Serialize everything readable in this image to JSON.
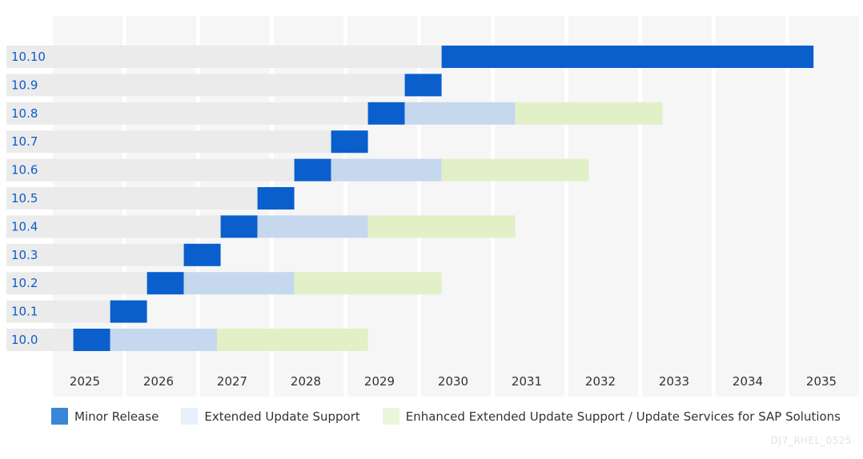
{
  "chart_data": {
    "type": "bar",
    "subtype": "gantt-timeline",
    "title": "",
    "xlabel": "",
    "ylabel": "",
    "x_ticks": [
      "2025",
      "2026",
      "2027",
      "2028",
      "2029",
      "2030",
      "2031",
      "2032",
      "2033",
      "2034",
      "2035"
    ],
    "xlim": [
      2025,
      2036
    ],
    "grid": true,
    "legend_position": "bottom-left",
    "categories": [
      "10.10",
      "10.9",
      "10.8",
      "10.7",
      "10.6",
      "10.5",
      "10.4",
      "10.3",
      "10.2",
      "10.1",
      "10.0"
    ],
    "series": [
      {
        "name": "Minor Release",
        "color": "#0a5fcc",
        "legend_color": "#3a86d8",
        "ranges": [
          [
            2030.3,
            2035.35
          ],
          [
            2029.8,
            2030.3
          ],
          [
            2029.3,
            2029.8
          ],
          [
            2028.8,
            2029.3
          ],
          [
            2028.3,
            2028.8
          ],
          [
            2027.8,
            2028.3
          ],
          [
            2027.3,
            2027.8
          ],
          [
            2026.8,
            2027.3
          ],
          [
            2026.3,
            2026.8
          ],
          [
            2025.8,
            2026.3
          ],
          [
            2025.3,
            2025.8
          ]
        ]
      },
      {
        "name": "Extended Update Support",
        "color": "#c6d8ee",
        "legend_color": "#e8f0fb",
        "ranges": [
          null,
          null,
          [
            2029.8,
            2031.3
          ],
          null,
          [
            2028.8,
            2030.3
          ],
          null,
          [
            2027.8,
            2029.3
          ],
          null,
          [
            2026.8,
            2028.3
          ],
          null,
          [
            2025.8,
            2027.25
          ]
        ]
      },
      {
        "name": "Enhanced Extended Update Support / Update Services for SAP Solutions",
        "color": "#e2f0c8",
        "legend_color": "#ebf5da",
        "ranges": [
          null,
          null,
          [
            2031.3,
            2033.3
          ],
          null,
          [
            2030.3,
            2032.3
          ],
          null,
          [
            2029.3,
            2031.3
          ],
          null,
          [
            2028.3,
            2030.3
          ],
          null,
          [
            2027.25,
            2029.3
          ]
        ]
      }
    ]
  },
  "colors": {
    "label": "#0b5ccc",
    "row_bg": "#ebebeb",
    "column_bg": "#f6f6f6"
  },
  "watermark": "DJ7_RHEL_0525"
}
